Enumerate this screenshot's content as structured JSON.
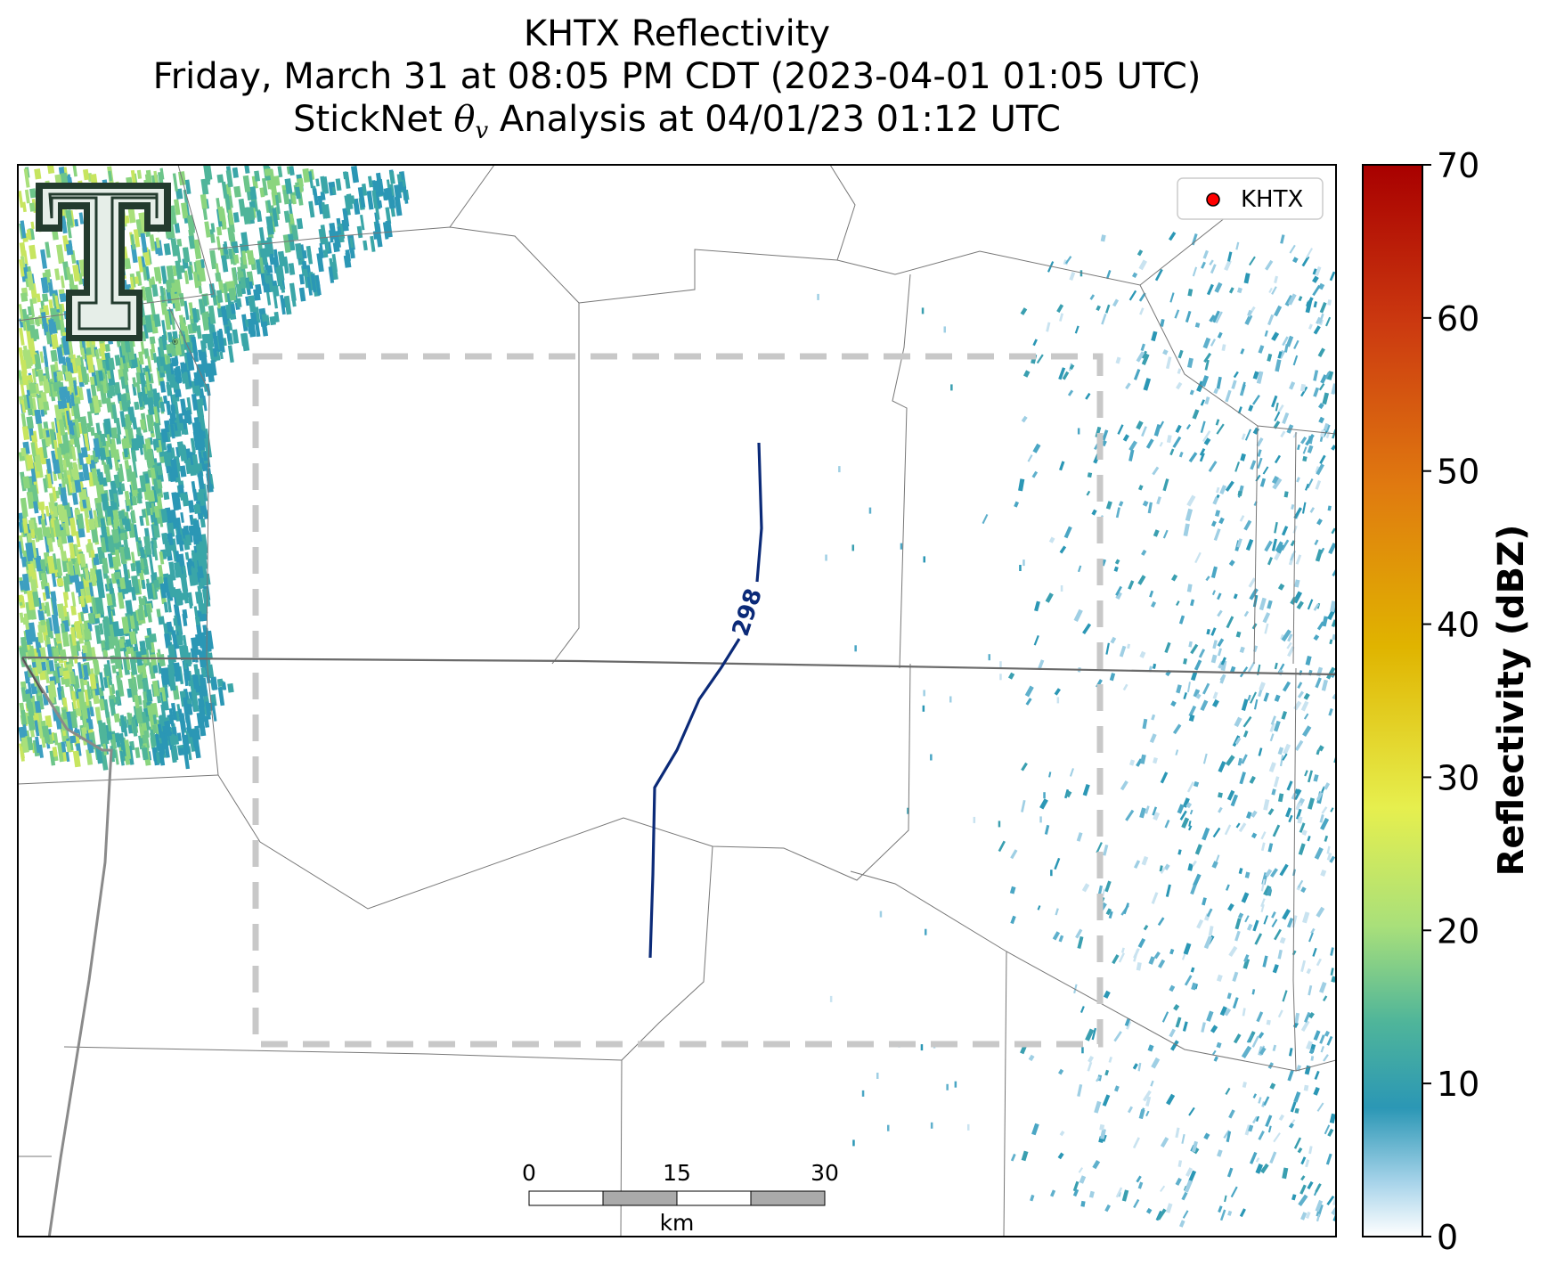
{
  "title": {
    "line1": "KHTX Reflectivity",
    "line2": "Friday, March 31 at 08:05 PM CDT (2023-04-01 01:05 UTC)",
    "line3_prefix": "StickNet ",
    "line3_symbol": "θ",
    "line3_subscript": "v",
    "line3_suffix": " Analysis at 04/01/23 01:12 UTC"
  },
  "legend": {
    "label": "KHTX",
    "marker_color": "#ff0000"
  },
  "contour": {
    "label": "298",
    "color": "#0b2a78"
  },
  "scalebar": {
    "ticks": [
      "0",
      "15",
      "30"
    ],
    "unit": "km"
  },
  "colorbar": {
    "label": "Reflectivity (dBZ)",
    "ticks": [
      "0",
      "10",
      "20",
      "30",
      "40",
      "50",
      "60",
      "70"
    ],
    "min": 0,
    "max": 70
  },
  "analysis_box": {
    "stroke_color": "#c8c8c8"
  },
  "logo": {
    "text": "T",
    "color": "#2e4a3a"
  },
  "colors": {
    "reflectivity_low": "#2b97b5",
    "reflectivity_mid": "#7ccf84",
    "reflectivity_high": "#c7e55f"
  }
}
